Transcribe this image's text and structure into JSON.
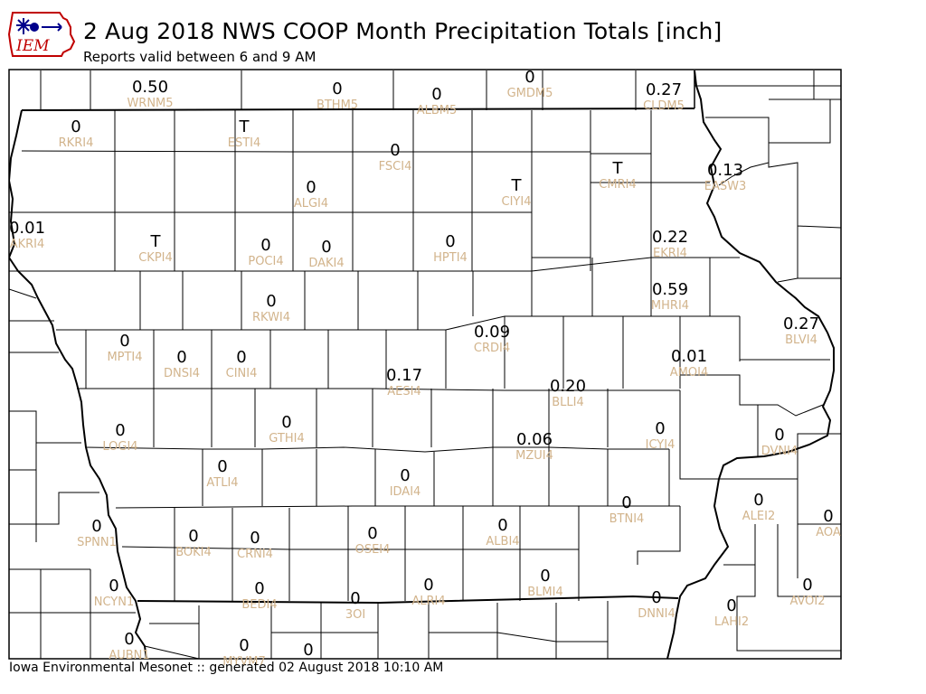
{
  "header": {
    "logo_text": "IEM",
    "title": "2 Aug 2018 NWS COOP Month Precipitation Totals [inch]",
    "subtitle": "Reports valid between 6 and 9 AM"
  },
  "footer": {
    "text": "Iowa Environmental Mesonet :: generated 02 August 2018 10:10 AM"
  },
  "colors": {
    "station_id": "#d2b48c",
    "value": "#000000",
    "boundary": "#000000"
  },
  "stations": [
    {
      "id": "WRNM5",
      "value": "0.50"
    },
    {
      "id": "BTHM5",
      "value": "0"
    },
    {
      "id": "ALBM5",
      "value": "0"
    },
    {
      "id": "GMDM5",
      "value": "0"
    },
    {
      "id": "CLDM5",
      "value": "0.27"
    },
    {
      "id": "RKRI4",
      "value": "0"
    },
    {
      "id": "ESTI4",
      "value": "T"
    },
    {
      "id": "FSCI4",
      "value": "0"
    },
    {
      "id": "CIYI4",
      "value": "T"
    },
    {
      "id": "CMRI4",
      "value": "T"
    },
    {
      "id": "EASW3",
      "value": "0.13"
    },
    {
      "id": "ALGI4",
      "value": "0"
    },
    {
      "id": "AKRI4",
      "value": "0.01"
    },
    {
      "id": "CKPI4",
      "value": "T"
    },
    {
      "id": "POCI4",
      "value": "0"
    },
    {
      "id": "DAKI4",
      "value": "0"
    },
    {
      "id": "HPTI4",
      "value": "0"
    },
    {
      "id": "EKRI4",
      "value": "0.22"
    },
    {
      "id": "RKWI4",
      "value": "0"
    },
    {
      "id": "MHRI4",
      "value": "0.59"
    },
    {
      "id": "BLVI4",
      "value": "0.27"
    },
    {
      "id": "CRDI4",
      "value": "0.09"
    },
    {
      "id": "MPTI4",
      "value": "0"
    },
    {
      "id": "DNSI4",
      "value": "0"
    },
    {
      "id": "CINI4",
      "value": "0"
    },
    {
      "id": "AMOI4",
      "value": "0.01"
    },
    {
      "id": "AESI4",
      "value": "0.17"
    },
    {
      "id": "BLLI4",
      "value": "0.20"
    },
    {
      "id": "LOGI4",
      "value": "0"
    },
    {
      "id": "GTHI4",
      "value": "0"
    },
    {
      "id": "ICYI4",
      "value": "0"
    },
    {
      "id": "DVNI4",
      "value": "0"
    },
    {
      "id": "MZUI4",
      "value": "0.06"
    },
    {
      "id": "ATLI4",
      "value": "0"
    },
    {
      "id": "IDAI4",
      "value": "0"
    },
    {
      "id": "BTNI4",
      "value": "0"
    },
    {
      "id": "ALEI2",
      "value": "0"
    },
    {
      "id": "SPNN1",
      "value": "0"
    },
    {
      "id": "BOKI4",
      "value": "0"
    },
    {
      "id": "CRNI4",
      "value": "0"
    },
    {
      "id": "OSEI4",
      "value": "0"
    },
    {
      "id": "ALBI4",
      "value": "0"
    },
    {
      "id": "AOA",
      "value": "0"
    },
    {
      "id": "NCYN1",
      "value": "0"
    },
    {
      "id": "BEDI4",
      "value": "0"
    },
    {
      "id": "ALRI4",
      "value": "0"
    },
    {
      "id": "BLMI4",
      "value": "0"
    },
    {
      "id": "AVOI2",
      "value": "0"
    },
    {
      "id": "3OI",
      "value": "0"
    },
    {
      "id": "DNNI4",
      "value": "0"
    },
    {
      "id": "LAHI2",
      "value": "0"
    },
    {
      "id": "AUBN1",
      "value": "0"
    },
    {
      "id": "MYVM7",
      "value": "0"
    },
    {
      "id": "",
      "value": "0"
    }
  ]
}
